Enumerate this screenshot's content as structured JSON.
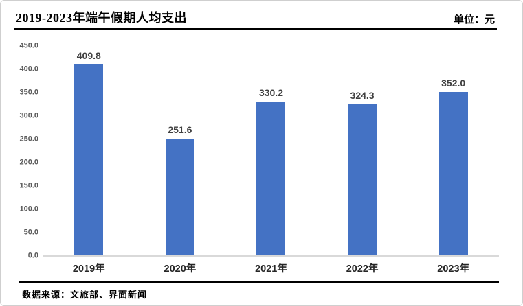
{
  "header": {
    "title": "2019-2023年端午假期人均支出",
    "unit_label": "单位：元"
  },
  "chart_data": {
    "type": "bar",
    "title": "2019-2023年端午假期人均支出",
    "unit": "单位：元",
    "categories": [
      "2019年",
      "2020年",
      "2021年",
      "2022年",
      "2023年"
    ],
    "values": [
      409.8,
      251.6,
      330.2,
      324.3,
      352.0
    ],
    "data_labels": [
      "409.8",
      "251.6",
      "330.2",
      "324.3",
      "352.0"
    ],
    "xlabel": "",
    "ylabel": "",
    "ylim": [
      0,
      450
    ],
    "ytick_labels": [
      "0.0",
      "50.0",
      "100.0",
      "150.0",
      "200.0",
      "250.0",
      "300.0",
      "350.0",
      "400.0",
      "450.0"
    ],
    "grid": false,
    "legend": null,
    "bar_color": "#4472C4",
    "baseline_color": "#D9D9D9"
  },
  "footer": {
    "source": "数据来源：文旅部、界面新闻"
  }
}
